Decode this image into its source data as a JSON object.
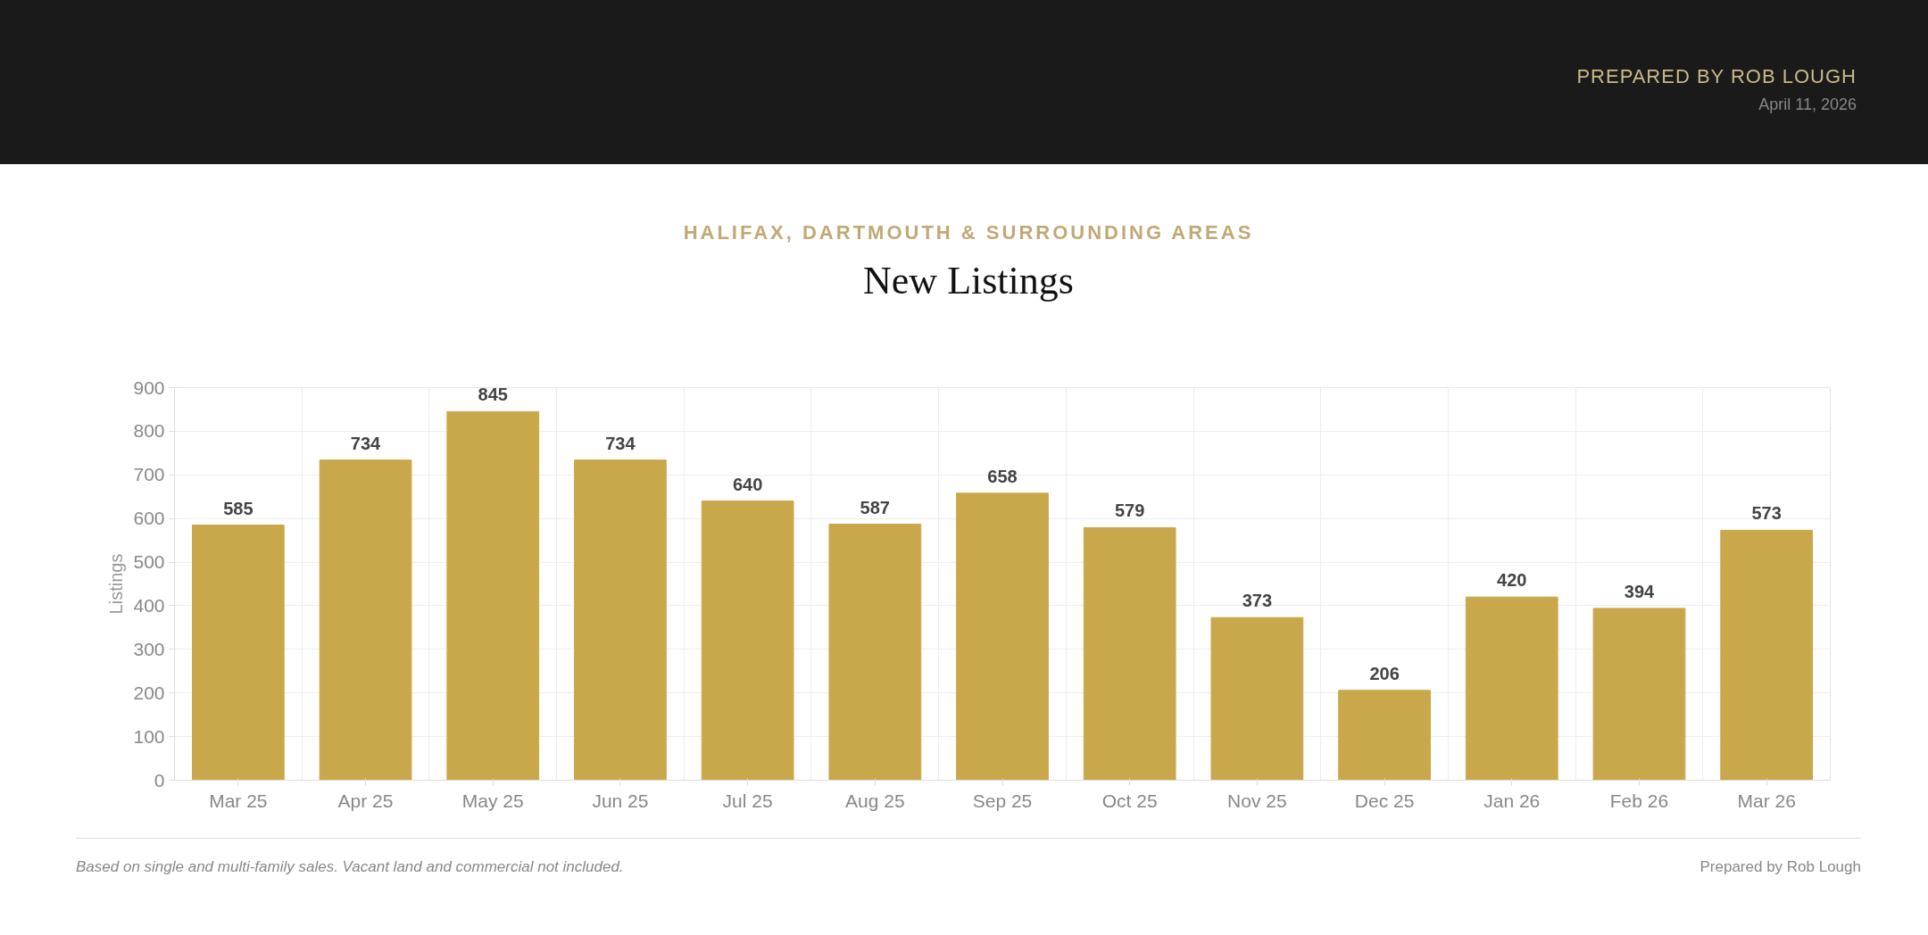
{
  "chart_data": {
    "type": "bar",
    "title": "New Listings",
    "subtitle": "HALIFAX, DARTMOUTH & SURROUNDING AREAS",
    "ylabel": "Listings",
    "categories": [
      "Mar 25",
      "Apr 25",
      "May 25",
      "Jun 25",
      "Jul 25",
      "Aug 25",
      "Sep 25",
      "Oct 25",
      "Nov 25",
      "Dec 25",
      "Jan 26",
      "Feb 26",
      "Mar 26"
    ],
    "values": [
      585,
      734,
      845,
      734,
      640,
      587,
      658,
      579,
      373,
      206,
      420,
      394,
      573
    ],
    "color": "#c9a84c",
    "ylim": [
      0,
      900
    ],
    "yticks": [
      0,
      100,
      200,
      300,
      400,
      500,
      600,
      700,
      800,
      900
    ],
    "grid": true,
    "data_labels": true,
    "annotations": [
      "PREPARED BY ROB LOUGH",
      "April 11, 2026",
      "Based on single and multi-family sales. Vacant land and commercial not included.",
      "Prepared by Rob Lough"
    ]
  }
}
